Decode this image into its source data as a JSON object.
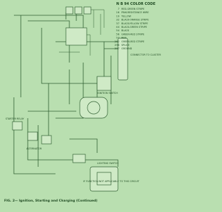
{
  "header": {
    "title": "N B 94 COLOR CODE"
  },
  "legend": {
    "items": [
      {
        "code": "7",
        "color": "RED-GREEN STRIPE"
      },
      {
        "code": "16",
        "color": "PINK-RESISTANCE WIRE"
      },
      {
        "code": "19",
        "color": "YELLOW"
      },
      {
        "code": "32",
        "color": "BLACK-ORANGE STRIPE"
      },
      {
        "code": "37",
        "color": "BLACK-YELLOW STRIPE"
      },
      {
        "code": "44",
        "color": "BLACK-GREEN STRIPE"
      },
      {
        "code": "54",
        "color": "BLACK"
      },
      {
        "code": "56",
        "color": "GREEN-RED STRIPE"
      },
      {
        "code": "57",
        "color": "RED"
      },
      {
        "code": "262",
        "color": "GREEN-RED STRIPE"
      },
      {
        "code": "296",
        "color": "SPLICE"
      },
      {
        "code": "297",
        "color": "GROUND"
      }
    ]
  },
  "labels": [
    "CONNECTOR TO CLUSTER ASSY.",
    "LIGHTING SWITCH",
    "IGNITION SWITCH",
    "STARTER RELAY",
    "ALTERNATOR",
    "IF FUNCTION NOT APPLICABLE TO THIS CIRCUIT"
  ],
  "caption": "FIG. 2— Ignition, Starting and Charging (Continued)"
}
